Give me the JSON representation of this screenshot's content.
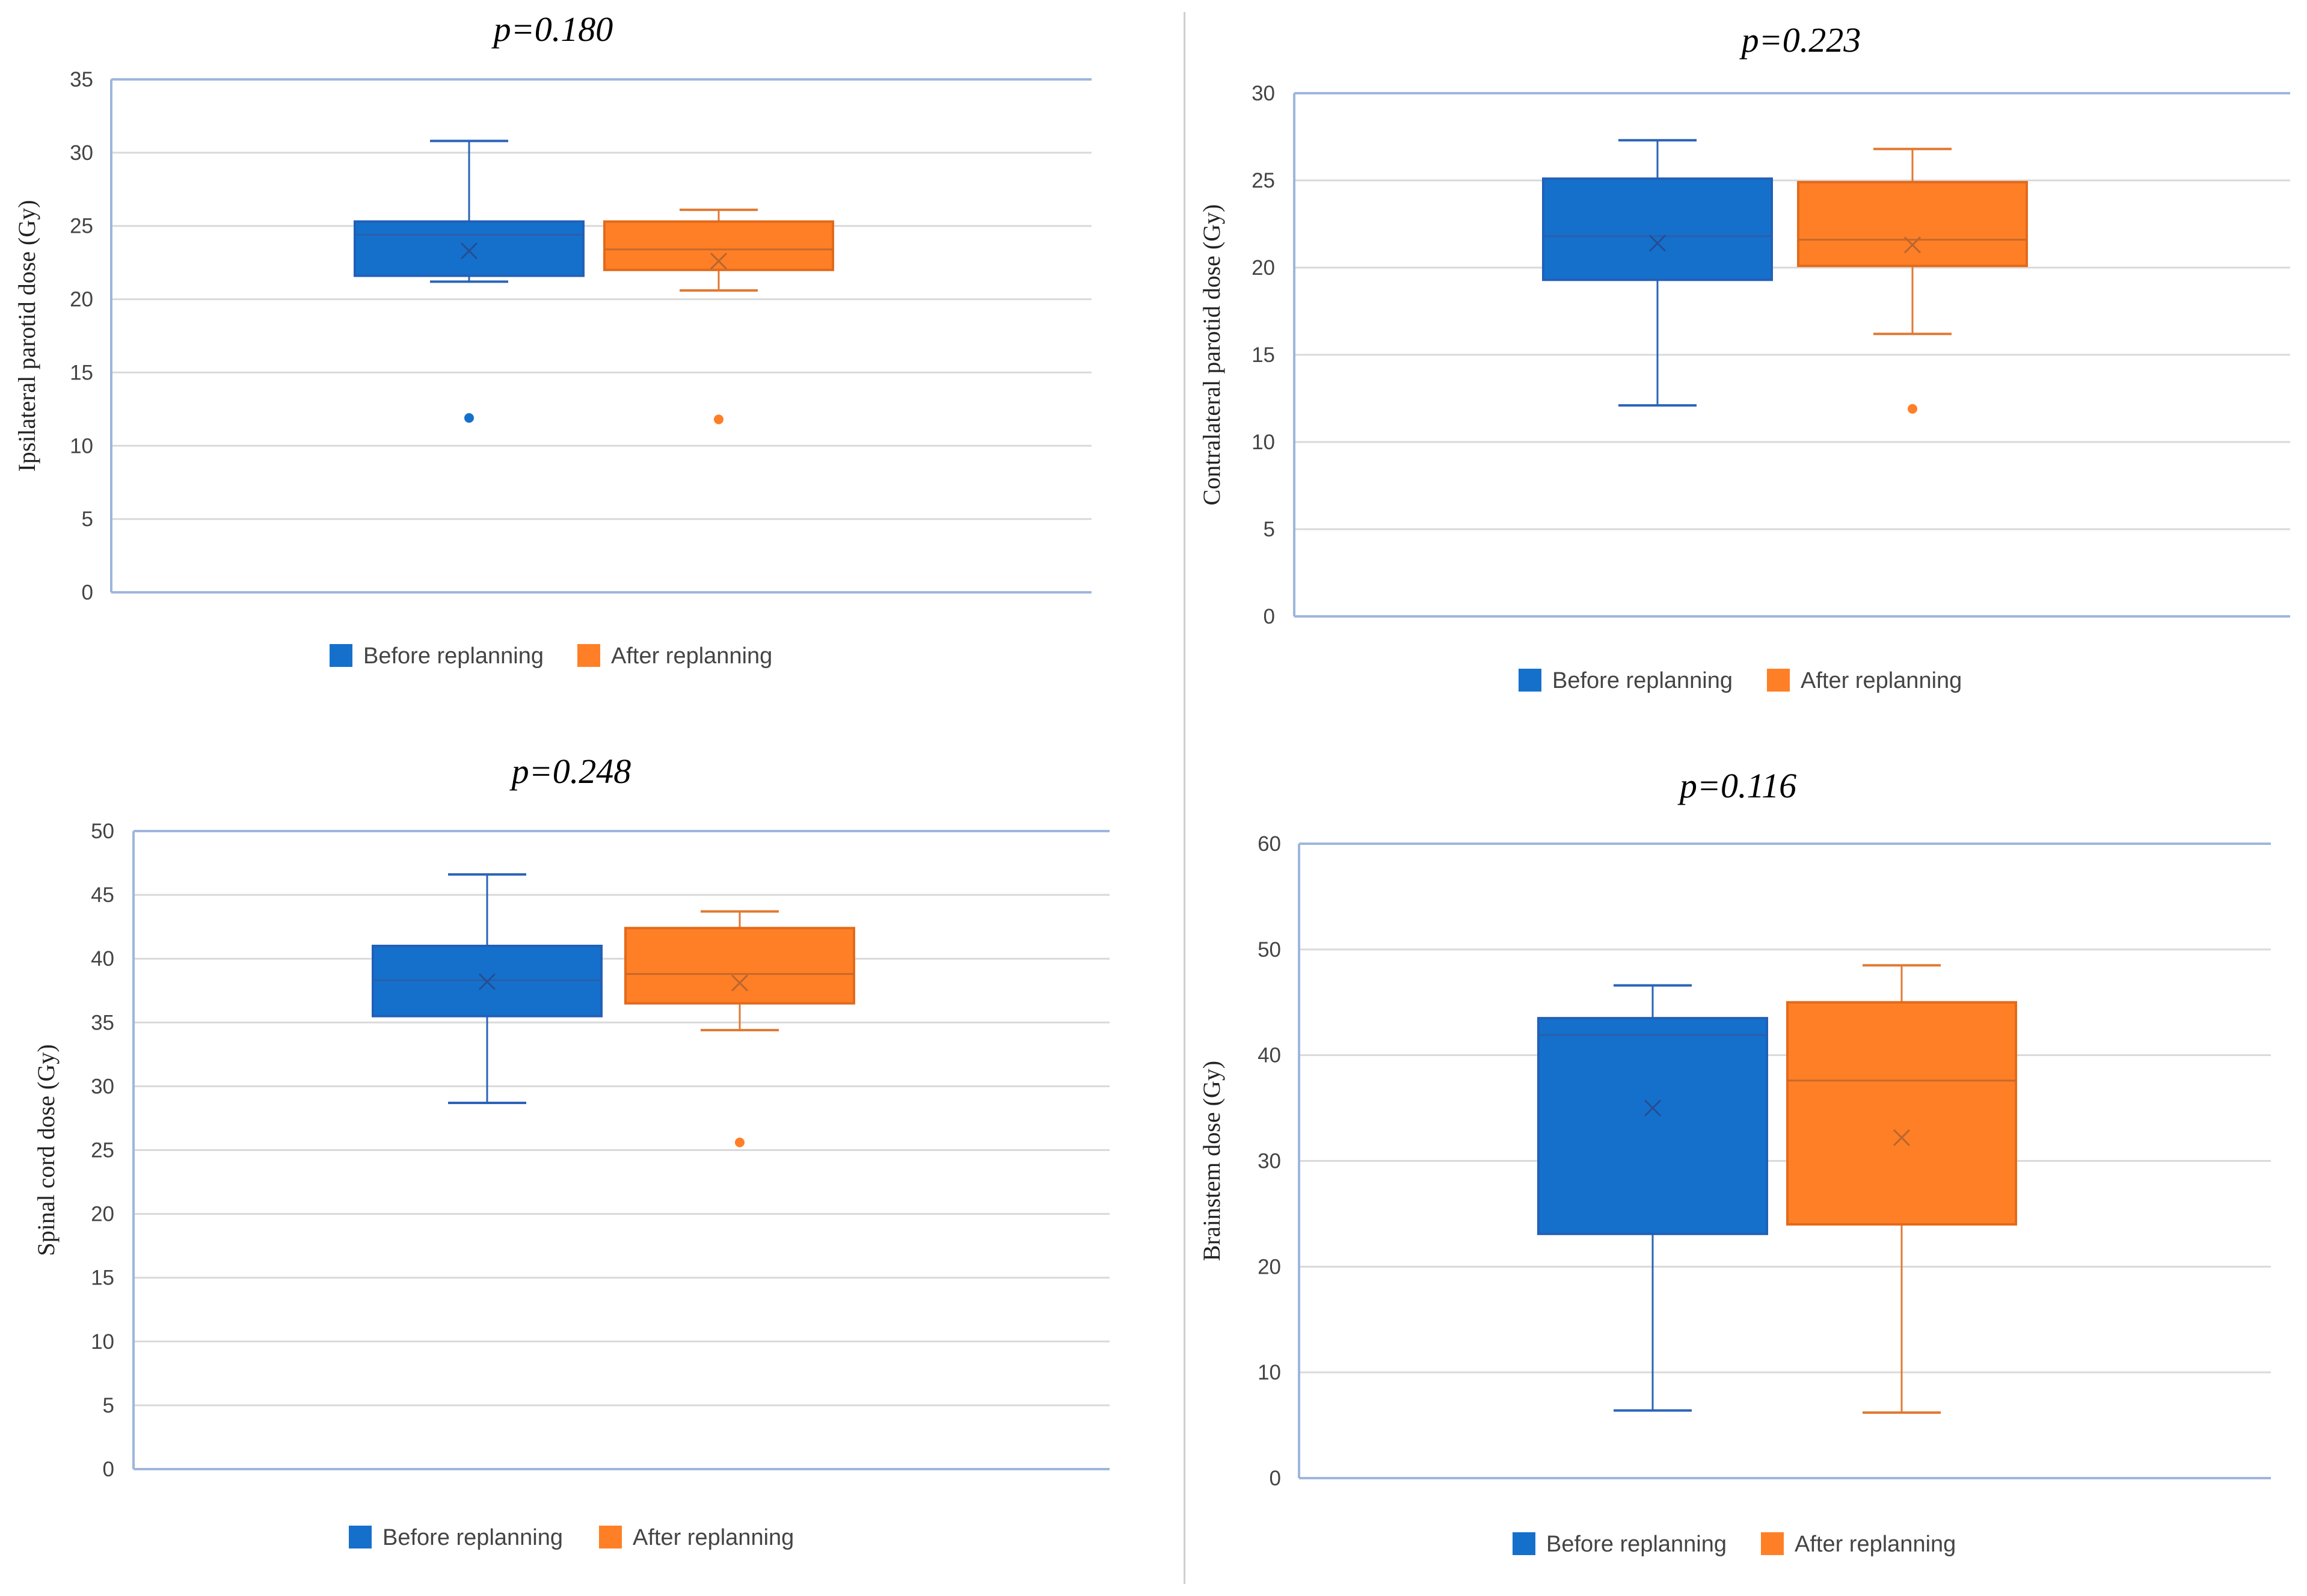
{
  "colors": {
    "before": "#1570CC",
    "before_stroke": "#2160B8",
    "after": "#FF7F27",
    "after_stroke": "#E36A1A",
    "grid": "#D9D9D9",
    "axis": "#9EB6DC"
  },
  "legend": {
    "before": "Before replanning",
    "after": "After replanning"
  },
  "chart_data": [
    {
      "type": "box",
      "title": "p=0.180",
      "ylabel": "Ipsilateral parotid dose (Gy)",
      "ylim": [
        0,
        35
      ],
      "yticks": [
        0,
        5,
        10,
        15,
        20,
        25,
        30,
        35
      ],
      "series": [
        {
          "name": "Before replanning",
          "min": 21.2,
          "q1": 21.6,
          "median": 24.4,
          "q3": 25.3,
          "max": 30.8,
          "mean": 23.3,
          "outliers": [
            11.9
          ]
        },
        {
          "name": "After replanning",
          "min": 20.6,
          "q1": 22.0,
          "median": 23.4,
          "q3": 25.3,
          "max": 26.1,
          "mean": 22.6,
          "outliers": [
            11.8
          ]
        }
      ]
    },
    {
      "type": "box",
      "title": "p=0.223",
      "ylabel": "Contralateral parotid dose (Gy)",
      "ylim": [
        0,
        30
      ],
      "yticks": [
        0,
        5,
        10,
        15,
        20,
        25,
        30
      ],
      "series": [
        {
          "name": "Before replanning",
          "min": 12.1,
          "q1": 19.3,
          "median": 21.8,
          "q3": 25.1,
          "max": 27.3,
          "mean": 21.4,
          "outliers": []
        },
        {
          "name": "After replanning",
          "min": 16.2,
          "q1": 20.1,
          "median": 21.6,
          "q3": 24.9,
          "max": 26.8,
          "mean": 21.3,
          "outliers": [
            11.9
          ]
        }
      ]
    },
    {
      "type": "box",
      "title": "p=0.248",
      "ylabel": "Spinal cord dose (Gy)",
      "ylim": [
        0,
        50
      ],
      "yticks": [
        0,
        5,
        10,
        15,
        20,
        25,
        30,
        35,
        40,
        45,
        50
      ],
      "series": [
        {
          "name": "Before replanning",
          "min": 28.7,
          "q1": 35.5,
          "median": 38.3,
          "q3": 41.0,
          "max": 46.6,
          "mean": 38.2,
          "outliers": []
        },
        {
          "name": "After replanning",
          "min": 34.4,
          "q1": 36.5,
          "median": 38.8,
          "q3": 42.4,
          "max": 43.7,
          "mean": 38.1,
          "outliers": [
            25.6
          ]
        }
      ]
    },
    {
      "type": "box",
      "title": "p=0.116",
      "ylabel": "Brainstem dose (Gy)",
      "ylim": [
        0,
        60
      ],
      "yticks": [
        0,
        10,
        20,
        30,
        40,
        50,
        60
      ],
      "series": [
        {
          "name": "Before replanning",
          "min": 6.4,
          "q1": 23.1,
          "median": 41.9,
          "q3": 43.5,
          "max": 46.6,
          "mean": 35.0,
          "outliers": []
        },
        {
          "name": "After replanning",
          "min": 6.2,
          "q1": 24.0,
          "median": 37.6,
          "q3": 45.0,
          "max": 48.5,
          "mean": 32.2,
          "outliers": []
        }
      ]
    }
  ]
}
